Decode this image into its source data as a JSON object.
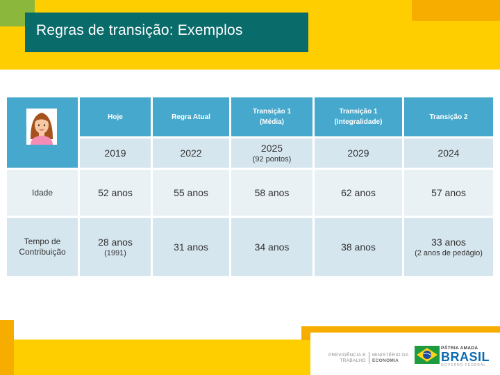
{
  "slide": {
    "title": "Regras de transição: Exemplos"
  },
  "table": {
    "headers": [
      {
        "line1": "Hoje",
        "line2": ""
      },
      {
        "line1": "Regra Atual",
        "line2": ""
      },
      {
        "line1": "Transição 1",
        "line2": "(Média)"
      },
      {
        "line1": "Transição 1",
        "line2": "(Integralidade)"
      },
      {
        "line1": "Transição 2",
        "line2": ""
      }
    ],
    "years": [
      {
        "value": "2019",
        "note": ""
      },
      {
        "value": "2022",
        "note": ""
      },
      {
        "value": "2025",
        "note": "(92 pontos)"
      },
      {
        "value": "2029",
        "note": ""
      },
      {
        "value": "2024",
        "note": ""
      }
    ],
    "rows": [
      {
        "label_line1": "Idade",
        "label_line2": "",
        "cells": [
          {
            "value": "52 anos",
            "note": ""
          },
          {
            "value": "55 anos",
            "note": ""
          },
          {
            "value": "58 anos",
            "note": ""
          },
          {
            "value": "62 anos",
            "note": ""
          },
          {
            "value": "57 anos",
            "note": ""
          }
        ]
      },
      {
        "label_line1": "Tempo de",
        "label_line2": "Contribuição",
        "cells": [
          {
            "value": "28 anos",
            "note": "(1991)"
          },
          {
            "value": "31 anos",
            "note": ""
          },
          {
            "value": "34 anos",
            "note": ""
          },
          {
            "value": "38 anos",
            "note": ""
          },
          {
            "value": "33 anos",
            "note": "(2 anos de pedágio)"
          }
        ]
      }
    ]
  },
  "footer": {
    "prev_line1": "PREVIDÊNCIA E",
    "prev_line2": "TRABALHO",
    "min_line1": "MINISTÉRIO DA",
    "min_line2": "ECONOMIA",
    "patria": "PÁTRIA AMADA",
    "brasil": "BRASIL",
    "gov": "GOVERNO FEDERAL"
  },
  "colors": {
    "yellow": "#ffce00",
    "orange": "#f6ad00",
    "teal": "#0a6b6b",
    "header_blue": "#46a8cc",
    "row_blue": "#d6e6ee",
    "row_light": "#e9f1f5"
  },
  "icons": [
    "woman-avatar-icon",
    "brazil-flag-icon"
  ]
}
